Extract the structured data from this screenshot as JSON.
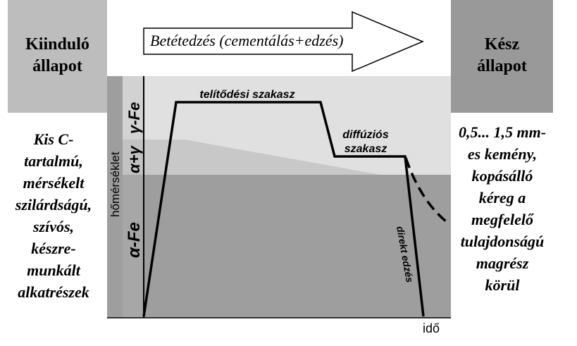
{
  "left_state": {
    "title_line1": "Kiinduló",
    "title_line2": "állapot"
  },
  "right_state": {
    "title_line1": "Kész",
    "title_line2": "állapot"
  },
  "process_arrow": {
    "label": "Betétedzés (cementálás+edzés)"
  },
  "left_description": [
    "Kis C-",
    "tartalmú,",
    "mérsékelt",
    "szilárdságú,",
    "szívós,",
    "készre-",
    "munkált",
    "alkatrészek"
  ],
  "right_description": [
    "0,5... 1,5 mm-",
    "es kemény,",
    "kopásálló",
    "kéreg a",
    "megfelelő",
    "tulajdonságú",
    "magrész",
    "körül"
  ],
  "diagram": {
    "y_axis_label": "hőmérséklet",
    "x_axis_label": "idő",
    "phase_gamma": "γ-Fe",
    "phase_alpha_gamma": "α+γ",
    "phase_alpha": "α-Fe",
    "stage_saturation": "telítődési szakasz",
    "stage_diffusion_line1": "diffúziós",
    "stage_diffusion_line2": "szakasz",
    "stage_quench": "direkt edzés"
  },
  "colors": {
    "box_light": "#bdbdbd",
    "box_dark": "#999999",
    "gamma_region": "#e0e0e0",
    "alpha_gamma_region": "#c8c8c8",
    "alpha_region": "#9e9e9e",
    "line": "#000000"
  }
}
